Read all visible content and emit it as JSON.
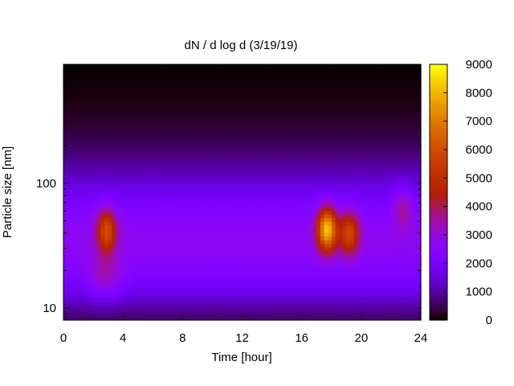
{
  "chart_data": {
    "type": "heatmap",
    "title": "dN / d log d (3/19/19)",
    "xlabel": "Time [hour]",
    "ylabel": "Particle size [nm]",
    "xlim": [
      0,
      24
    ],
    "ylim_nm": [
      8,
      900
    ],
    "y_scale": "log",
    "x_ticks": [
      0,
      4,
      8,
      12,
      16,
      20,
      24
    ],
    "y_ticks": [
      10,
      100
    ],
    "colorbar": {
      "range": [
        0,
        9000
      ],
      "ticks": [
        0,
        1000,
        2000,
        3000,
        4000,
        5000,
        6000,
        7000,
        8000,
        9000
      ],
      "palette": "gnuplot",
      "low_color": "#000000",
      "high_color": "#ffff00"
    },
    "features": [
      {
        "time": 2.9,
        "diameter_nm": 42,
        "peak": 5600
      },
      {
        "time": 17.7,
        "diameter_nm": 43,
        "peak": 7900
      },
      {
        "time": 19.2,
        "diameter_nm": 40,
        "peak": 5400
      },
      {
        "time": 22.8,
        "diameter_nm": 65,
        "peak": 3500
      }
    ],
    "background_level": 2200
  }
}
